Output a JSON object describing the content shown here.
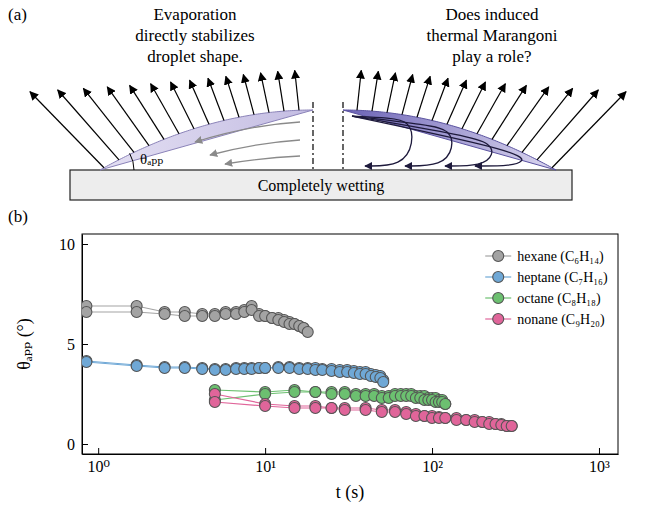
{
  "diagram": {
    "panel_label": "(a)",
    "left_text": [
      "Evaporation",
      "directly stabilizes",
      "droplet shape."
    ],
    "right_text": [
      "Does induced",
      "thermal Marangoni",
      "play a role?"
    ],
    "angle_label": "θₐₚₚ",
    "substrate_label": "Completely wetting"
  },
  "chart_data": {
    "type": "scatter",
    "panel_label": "(b)",
    "xlabel": "t (s)",
    "ylabel": "θₐₚₚ (°)",
    "log": "x",
    "xlim": [
      0.8,
      1300
    ],
    "xticks": [
      {
        "value": 1,
        "label": "10⁰"
      },
      {
        "value": 10,
        "label": "10¹"
      },
      {
        "value": 100,
        "label": "10²"
      },
      {
        "value": 1000,
        "label": "10³"
      }
    ],
    "ylim": [
      -0.5,
      10.5
    ],
    "yticks": [
      0,
      5,
      10
    ],
    "legend": "upper right",
    "marker": "circle",
    "line_style": "solid",
    "series": [
      {
        "name": "hexane (C₆H₁₄)",
        "color": "#a3a3a3",
        "runs": [
          {
            "x": [
              0.85,
              1.7,
              2.5,
              3.3,
              4.2,
              5,
              5.8,
              6.7,
              7.5,
              8.3,
              9.2,
              10,
              11,
              12,
              13,
              14,
              15,
              16,
              17
            ],
            "values": [
              6.9,
              6.9,
              6.6,
              6.6,
              6.5,
              6.5,
              6.6,
              6.6,
              6.7,
              6.9,
              6.5,
              6.4,
              6.3,
              6.3,
              6.2,
              6.1,
              6.0,
              5.9,
              5.8
            ]
          },
          {
            "x": [
              0.85,
              1.7,
              2.5,
              3.3,
              4.2,
              5,
              5.8,
              6.7,
              7.5,
              8.3,
              9.2,
              10,
              11,
              12,
              13,
              14,
              15,
              16,
              17,
              18
            ],
            "values": [
              6.6,
              6.6,
              6.5,
              6.4,
              6.4,
              6.4,
              6.5,
              6.5,
              6.6,
              6.7,
              6.4,
              6.4,
              6.3,
              6.2,
              6.1,
              6.0,
              6.0,
              5.9,
              5.8,
              5.6
            ]
          }
        ]
      },
      {
        "name": "heptane (C₇H₁₆)",
        "color": "#6fa8d6",
        "runs": [
          {
            "x": [
              0.85,
              1.7,
              2.5,
              3.3,
              4.2,
              5,
              5.8,
              6.7,
              7.5,
              8.3,
              9.2,
              10,
              12,
              14,
              16,
              18,
              20,
              22,
              25,
              28,
              31,
              34,
              37,
              40,
              43,
              46,
              49,
              51
            ],
            "values": [
              4.15,
              3.95,
              3.85,
              3.85,
              3.8,
              3.75,
              3.75,
              3.8,
              3.8,
              3.8,
              3.8,
              3.8,
              3.85,
              3.85,
              3.8,
              3.8,
              3.8,
              3.75,
              3.75,
              3.7,
              3.7,
              3.65,
              3.6,
              3.6,
              3.5,
              3.45,
              3.4,
              3.2
            ]
          },
          {
            "x": [
              0.85,
              1.7,
              2.5,
              3.3,
              4.2,
              5,
              5.8,
              6.7,
              7.5,
              8.3,
              9.2,
              10,
              12,
              14,
              16,
              18,
              20,
              22,
              25,
              28,
              31,
              34,
              37,
              40,
              43,
              46,
              49,
              51
            ],
            "values": [
              4.1,
              3.9,
              3.8,
              3.8,
              3.75,
              3.7,
              3.7,
              3.75,
              3.75,
              3.75,
              3.8,
              3.8,
              3.8,
              3.8,
              3.75,
              3.75,
              3.7,
              3.7,
              3.65,
              3.6,
              3.6,
              3.55,
              3.5,
              3.5,
              3.4,
              3.35,
              3.3,
              3.1
            ]
          }
        ]
      },
      {
        "name": "octane (C₈H₁₈)",
        "color": "#6cc070",
        "runs": [
          {
            "x": [
              5,
              10,
              15,
              20,
              25,
              30,
              35,
              40,
              45,
              50,
              55,
              60,
              65,
              70,
              75,
              80,
              85,
              90,
              95,
              100,
              105,
              110,
              115,
              120
            ],
            "values": [
              2.7,
              2.6,
              2.7,
              2.6,
              2.6,
              2.6,
              2.5,
              2.5,
              2.5,
              2.4,
              2.4,
              2.5,
              2.5,
              2.5,
              2.5,
              2.4,
              2.4,
              2.4,
              2.3,
              2.3,
              2.3,
              2.2,
              2.2,
              2.0
            ]
          },
          {
            "x": [
              5,
              10,
              15,
              20,
              25,
              30,
              35,
              40,
              45,
              50,
              55,
              60,
              65,
              70,
              75,
              80,
              85,
              90,
              95,
              100,
              105,
              110,
              115,
              120
            ],
            "values": [
              2.2,
              2.5,
              2.6,
              2.6,
              2.5,
              2.5,
              2.4,
              2.4,
              2.4,
              2.3,
              2.3,
              2.4,
              2.4,
              2.4,
              2.4,
              2.3,
              2.3,
              2.2,
              2.2,
              2.2,
              2.1,
              2.1,
              2.1,
              2.0
            ]
          }
        ]
      },
      {
        "name": "nonane (C₉H₂₀)",
        "color": "#e0659a",
        "runs": [
          {
            "x": [
              5,
              10,
              15,
              20,
              25,
              30,
              40,
              50,
              60,
              70,
              80,
              90,
              100,
              110,
              120,
              140,
              160,
              180,
              200,
              220,
              240,
              260,
              280,
              300
            ],
            "values": [
              2.5,
              2.0,
              1.9,
              1.9,
              1.8,
              1.8,
              1.8,
              1.7,
              1.7,
              1.6,
              1.5,
              1.4,
              1.4,
              1.35,
              1.3,
              1.3,
              1.2,
              1.2,
              1.1,
              1.1,
              1.0,
              1.0,
              0.9,
              0.9
            ]
          },
          {
            "x": [
              5,
              10,
              15,
              20,
              25,
              30,
              40,
              50,
              60,
              70,
              80,
              90,
              100,
              110,
              120,
              140,
              160,
              180,
              200,
              220,
              240,
              260,
              280,
              300
            ],
            "values": [
              2.1,
              1.9,
              1.8,
              1.8,
              1.8,
              1.7,
              1.7,
              1.6,
              1.6,
              1.5,
              1.4,
              1.4,
              1.3,
              1.3,
              1.3,
              1.2,
              1.2,
              1.1,
              1.1,
              1.0,
              1.0,
              0.95,
              0.9,
              0.9
            ]
          }
        ]
      }
    ]
  }
}
